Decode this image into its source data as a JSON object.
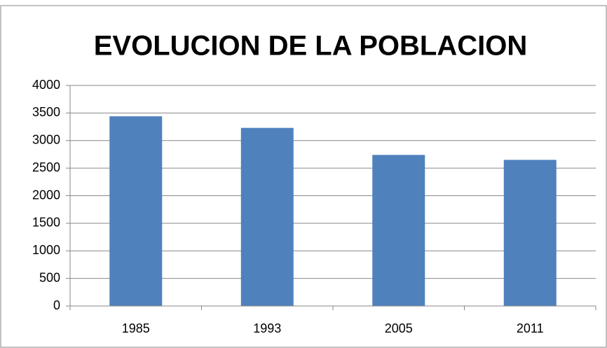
{
  "chart_data": {
    "type": "bar",
    "title": "EVOLUCION DE LA POBLACION",
    "categories": [
      "1985",
      "1993",
      "2005",
      "2011"
    ],
    "values": [
      3440,
      3230,
      2740,
      2650
    ],
    "color": "#4f81bd",
    "ylim": [
      0,
      4000
    ],
    "yticks": [
      0,
      500,
      1000,
      1500,
      2000,
      2500,
      3000,
      3500,
      4000
    ],
    "grid": true
  }
}
